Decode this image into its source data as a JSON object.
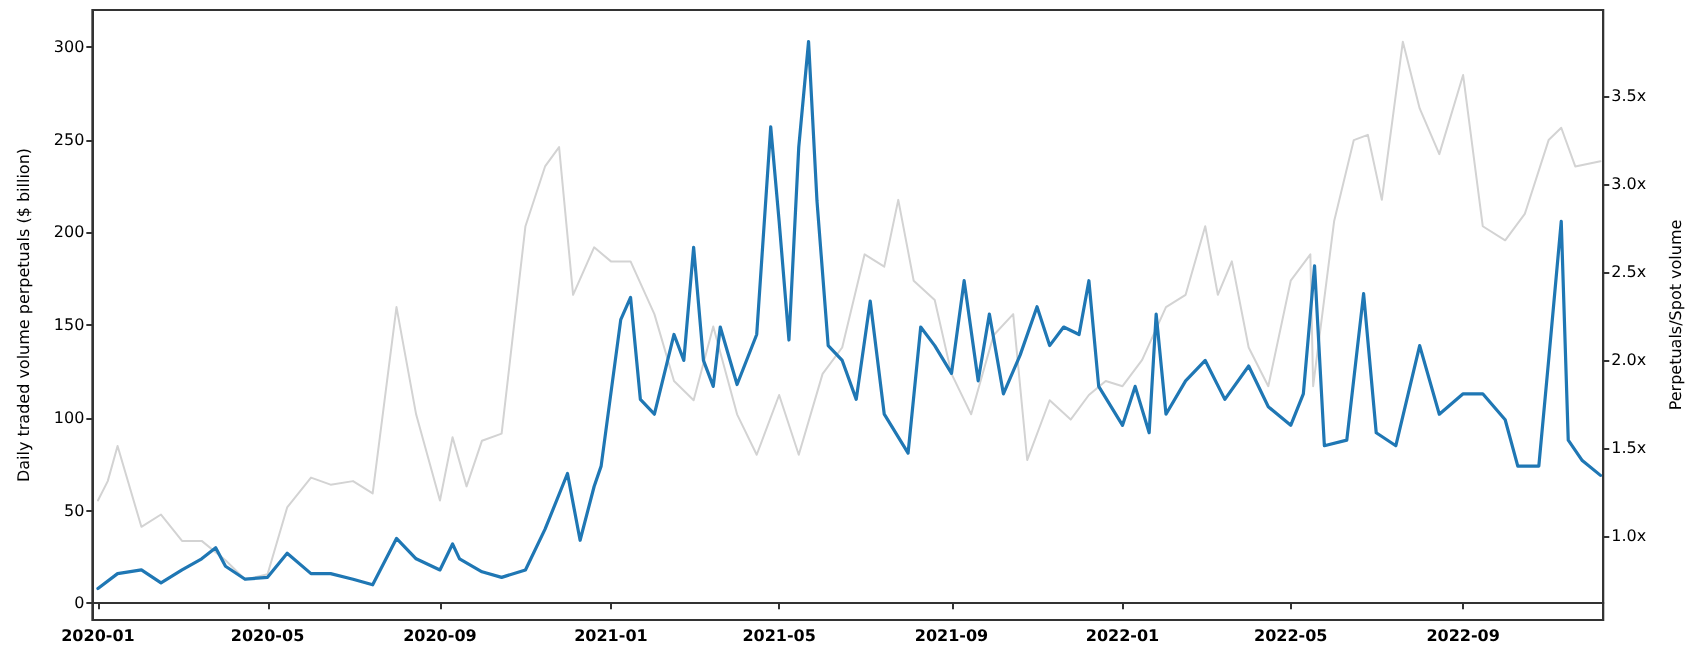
{
  "chart_data": {
    "type": "line",
    "ylabel": "Daily traded volume perpetuals ($ billion)",
    "y2label": "Perpetuals/Spot volume",
    "xlim": [
      "2019-12-28",
      "2022-12-10"
    ],
    "xticks": [
      {
        "value": "2020-01-01",
        "label": "2020-01"
      },
      {
        "value": "2020-05-01",
        "label": "2020-05"
      },
      {
        "value": "2020-09-01",
        "label": "2020-09"
      },
      {
        "value": "2021-01-01",
        "label": "2021-01"
      },
      {
        "value": "2021-05-01",
        "label": "2021-05"
      },
      {
        "value": "2021-09-01",
        "label": "2021-09"
      },
      {
        "value": "2022-01-01",
        "label": "2022-01"
      },
      {
        "value": "2022-05-01",
        "label": "2022-05"
      },
      {
        "value": "2022-09-01",
        "label": "2022-09"
      }
    ],
    "ylim": [
      -9,
      320
    ],
    "yticks": [
      0,
      50,
      100,
      150,
      200,
      250,
      300
    ],
    "y2lim": [
      0.52,
      3.99
    ],
    "y2ticks": [
      {
        "value": 1,
        "label": "1.0x"
      },
      {
        "value": 1.5,
        "label": "1.5x"
      },
      {
        "value": 2,
        "label": "2.0x"
      },
      {
        "value": 2.5,
        "label": "2.5x"
      },
      {
        "value": 3,
        "label": "3.0x"
      },
      {
        "value": 3.5,
        "label": "3.5x"
      }
    ],
    "marker": "none",
    "line_style": "solid",
    "series": [
      {
        "color": "#d3d3d3",
        "axis": "y2",
        "x": [
          "2020-01-01",
          "2020-01-08",
          "2020-01-15",
          "2020-02-01",
          "2020-02-15",
          "2020-03-01",
          "2020-03-15",
          "2020-04-01",
          "2020-04-15",
          "2020-05-01",
          "2020-05-15",
          "2020-06-01",
          "2020-06-15",
          "2020-07-01",
          "2020-07-15",
          "2020-08-01",
          "2020-08-15",
          "2020-09-01",
          "2020-09-10",
          "2020-09-20",
          "2020-10-01",
          "2020-10-15",
          "2020-11-01",
          "2020-11-15",
          "2020-11-25",
          "2020-12-05",
          "2020-12-20",
          "2021-01-01",
          "2021-01-15",
          "2021-02-01",
          "2021-02-15",
          "2021-03-01",
          "2021-03-15",
          "2021-04-01",
          "2021-04-15",
          "2021-05-01",
          "2021-05-15",
          "2021-06-01",
          "2021-06-15",
          "2021-07-01",
          "2021-07-15",
          "2021-07-25",
          "2021-08-05",
          "2021-08-20",
          "2021-09-01",
          "2021-09-15",
          "2021-10-01",
          "2021-10-15",
          "2021-10-25",
          "2021-11-10",
          "2021-11-25",
          "2021-12-08",
          "2021-12-20",
          "2022-01-01",
          "2022-01-15",
          "2022-02-01",
          "2022-02-15",
          "2022-03-01",
          "2022-03-10",
          "2022-03-20",
          "2022-04-01",
          "2022-04-15",
          "2022-05-01",
          "2022-05-15",
          "2022-05-17",
          "2022-06-01",
          "2022-06-15",
          "2022-06-25",
          "2022-07-05",
          "2022-07-20",
          "2022-08-01",
          "2022-08-15",
          "2022-09-01",
          "2022-09-15",
          "2022-10-01",
          "2022-10-15",
          "2022-11-01",
          "2022-11-10",
          "2022-11-20",
          "2022-12-08"
        ],
        "values": [
          1.2,
          1.31,
          1.51,
          1.05,
          1.12,
          0.97,
          0.97,
          0.86,
          0.75,
          0.78,
          1.16,
          1.33,
          1.29,
          1.31,
          1.24,
          2.3,
          1.69,
          1.2,
          1.56,
          1.28,
          1.54,
          1.58,
          2.76,
          3.1,
          3.21,
          2.37,
          2.64,
          2.56,
          2.56,
          2.26,
          1.88,
          1.77,
          2.19,
          1.69,
          1.46,
          1.8,
          1.46,
          1.92,
          2.07,
          2.6,
          2.53,
          2.91,
          2.45,
          2.34,
          1.92,
          1.69,
          2.14,
          2.26,
          1.43,
          1.77,
          1.66,
          1.8,
          1.88,
          1.85,
          2.0,
          2.3,
          2.37,
          2.76,
          2.37,
          2.56,
          2.07,
          1.85,
          2.45,
          2.6,
          1.85,
          2.79,
          3.25,
          3.28,
          2.91,
          3.81,
          3.43,
          3.17,
          3.62,
          2.76,
          2.68,
          2.83,
          3.25,
          3.32,
          3.1,
          3.13
        ]
      },
      {
        "color": "#1f77b4",
        "x": [
          "2020-01-01",
          "2020-01-15",
          "2020-02-01",
          "2020-02-15",
          "2020-03-01",
          "2020-03-15",
          "2020-03-25",
          "2020-04-01",
          "2020-04-15",
          "2020-05-01",
          "2020-05-15",
          "2020-06-01",
          "2020-06-15",
          "2020-07-01",
          "2020-07-15",
          "2020-08-01",
          "2020-08-15",
          "2020-09-01",
          "2020-09-10",
          "2020-09-15",
          "2020-10-01",
          "2020-10-15",
          "2020-11-01",
          "2020-11-15",
          "2020-12-01",
          "2020-12-10",
          "2020-12-20",
          "2020-12-25",
          "2021-01-08",
          "2021-01-15",
          "2021-01-22",
          "2021-02-01",
          "2021-02-15",
          "2021-02-22",
          "2021-03-01",
          "2021-03-08",
          "2021-03-15",
          "2021-03-20",
          "2021-04-01",
          "2021-04-15",
          "2021-04-25",
          "2021-05-01",
          "2021-05-08",
          "2021-05-15",
          "2021-05-22",
          "2021-05-28",
          "2021-06-05",
          "2021-06-15",
          "2021-06-25",
          "2021-07-05",
          "2021-07-15",
          "2021-08-01",
          "2021-08-10",
          "2021-08-20",
          "2021-09-01",
          "2021-09-10",
          "2021-09-20",
          "2021-09-28",
          "2021-10-08",
          "2021-10-20",
          "2021-11-01",
          "2021-11-10",
          "2021-11-20",
          "2021-12-01",
          "2021-12-08",
          "2021-12-15",
          "2022-01-01",
          "2022-01-10",
          "2022-01-20",
          "2022-01-25",
          "2022-02-01",
          "2022-02-15",
          "2022-03-01",
          "2022-03-15",
          "2022-04-01",
          "2022-04-15",
          "2022-05-01",
          "2022-05-10",
          "2022-05-18",
          "2022-05-25",
          "2022-06-10",
          "2022-06-22",
          "2022-07-01",
          "2022-07-15",
          "2022-08-01",
          "2022-08-15",
          "2022-09-01",
          "2022-09-15",
          "2022-10-01",
          "2022-10-10",
          "2022-10-25",
          "2022-11-01",
          "2022-11-10",
          "2022-11-15",
          "2022-11-25",
          "2022-12-08"
        ],
        "values": [
          8,
          16,
          18,
          11,
          18,
          24,
          30,
          20,
          13,
          14,
          27,
          16,
          16,
          13,
          10,
          35,
          24,
          18,
          32,
          24,
          17,
          14,
          18,
          40,
          70,
          34,
          63,
          74,
          153,
          165,
          110,
          102,
          145,
          131,
          192,
          131,
          117,
          149,
          118,
          145,
          257,
          206,
          142,
          246,
          303,
          217,
          139,
          131,
          110,
          163,
          102,
          81,
          149,
          139,
          124,
          174,
          120,
          156,
          113,
          134,
          160,
          139,
          149,
          145,
          174,
          117,
          96,
          117,
          92,
          156,
          102,
          120,
          131,
          110,
          128,
          106,
          96,
          113,
          182,
          85,
          88,
          167,
          92,
          85,
          139,
          102,
          113,
          113,
          99,
          74,
          74,
          131,
          206,
          88,
          77,
          69
        ]
      }
    ]
  }
}
